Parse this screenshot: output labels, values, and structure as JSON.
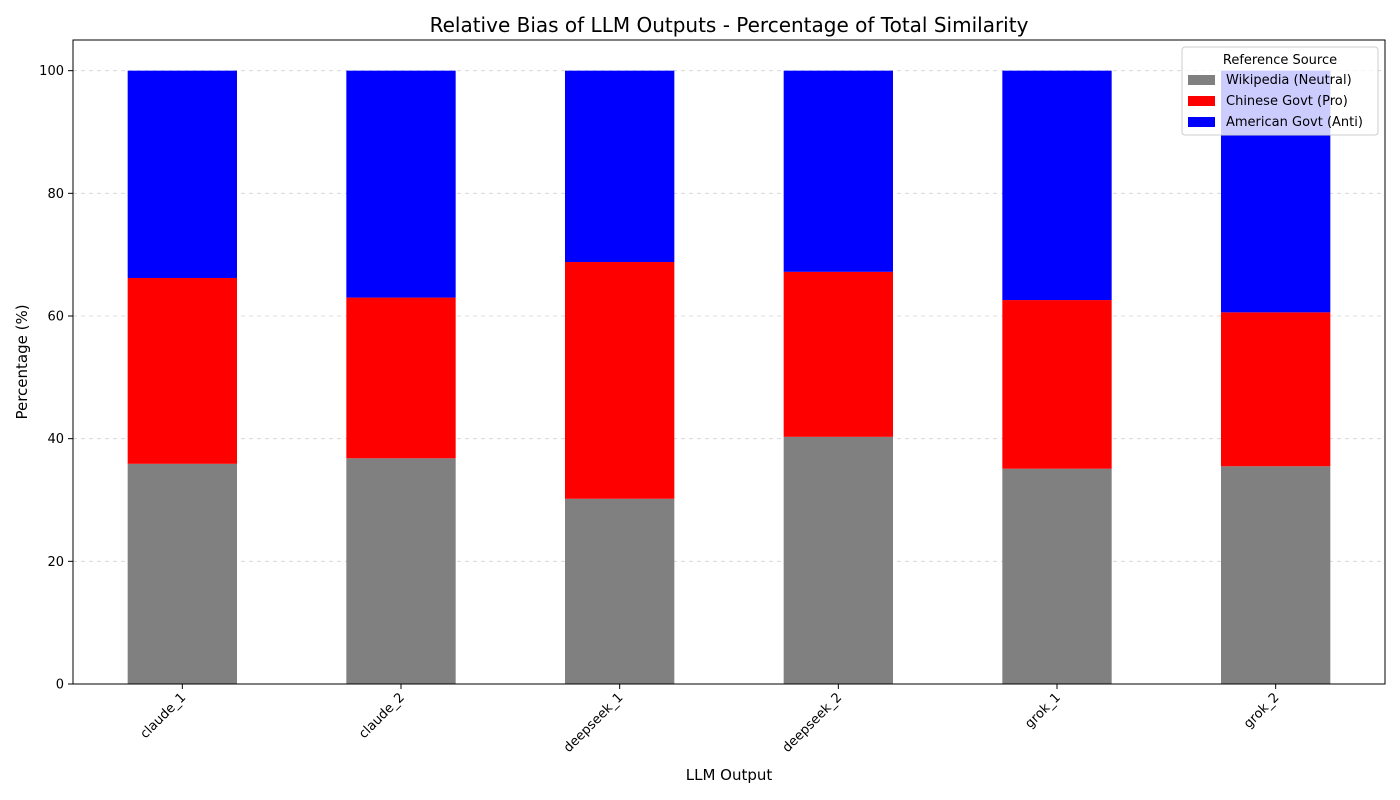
{
  "chart_data": {
    "type": "bar",
    "stacked": true,
    "title": "Relative Bias of LLM Outputs - Percentage of Total Similarity",
    "xlabel": "LLM Output",
    "ylabel": "Percentage (%)",
    "ylim": [
      0,
      105
    ],
    "yticks": [
      0,
      20,
      40,
      60,
      80,
      100
    ],
    "grid": "y-dashed",
    "legend": {
      "title": "Reference Source",
      "placement": "top-right"
    },
    "categories": [
      "claude_1",
      "claude_2",
      "deepseek_1",
      "deepseek_2",
      "grok_1",
      "grok_2"
    ],
    "series": [
      {
        "name": "Wikipedia (Neutral)",
        "color": "#808080",
        "values": [
          35.9,
          36.8,
          30.2,
          40.3,
          35.1,
          35.5
        ]
      },
      {
        "name": "Chinese Govt (Pro)",
        "color": "#ff0000",
        "values": [
          30.3,
          26.2,
          38.6,
          26.9,
          27.5,
          25.1
        ]
      },
      {
        "name": "American Govt (Anti)",
        "color": "#0000ff",
        "values": [
          33.8,
          37.0,
          31.2,
          32.8,
          37.4,
          39.4
        ]
      }
    ]
  }
}
